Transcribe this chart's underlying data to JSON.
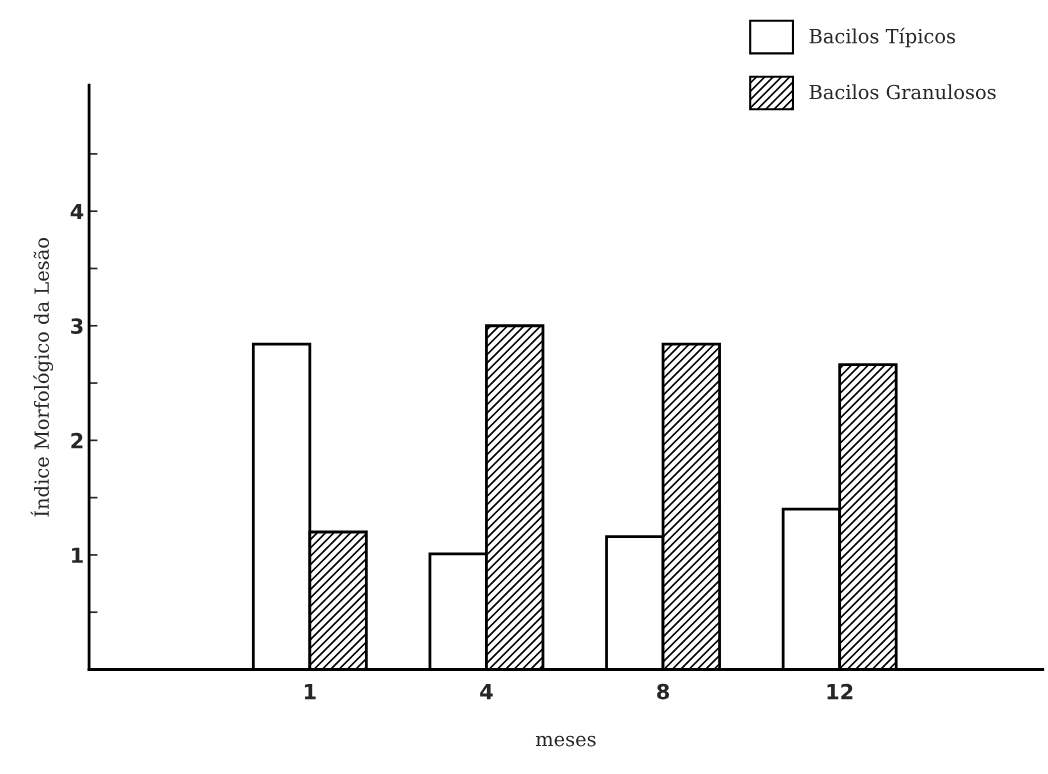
{
  "chart_data": {
    "type": "bar",
    "xlabel": "meses",
    "ylabel": "Índice Morfológico da Lesão",
    "categories": [
      "1",
      "4",
      "8",
      "12"
    ],
    "series": [
      {
        "name": "Bacilos Típicos",
        "color": "#ffffff",
        "values": [
          2.84,
          1.01,
          1.16,
          1.4
        ]
      },
      {
        "name": "Bacilos Granulosos",
        "color": "#000000",
        "values": [
          1.2,
          3.0,
          2.84,
          2.66
        ]
      }
    ],
    "ylim": [
      0,
      5.1
    ],
    "yticks": [
      {
        "value": 0.5,
        "label": null
      },
      1,
      {
        "value": 1.5,
        "label": null
      },
      2,
      {
        "value": 2.5,
        "label": null
      },
      3,
      {
        "value": 3.5,
        "label": null
      },
      4,
      {
        "value": 4.5,
        "label": null
      }
    ],
    "grid": false,
    "legend": "top right"
  }
}
